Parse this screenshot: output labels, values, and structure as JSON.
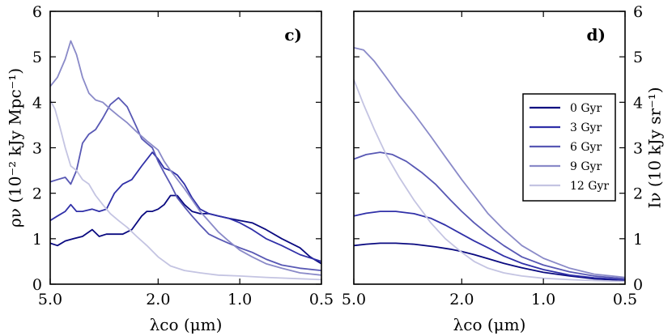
{
  "chart_data": [
    {
      "type": "line",
      "panel_label": "c)",
      "xlabel": "λco (μm)",
      "ylabel": "ρν (10⁻² kJy Mpc⁻¹)",
      "x_scale": "log-reversed",
      "xlim": [
        5.0,
        0.5
      ],
      "ylim": [
        0,
        6
      ],
      "xticks": [
        5.0,
        2.0,
        1.0,
        0.5
      ],
      "xtick_labels": [
        "5.0",
        "2.0",
        "1.0",
        "0.5"
      ],
      "yticks": [
        0,
        1,
        2,
        3,
        4,
        5,
        6
      ],
      "ytick_labels": [
        "0",
        "1",
        "2",
        "3",
        "4",
        "5",
        "6"
      ],
      "series": [
        {
          "name": "0 Gyr",
          "color": "#0a0a80",
          "x": [
            5.0,
            4.7,
            4.4,
            4.1,
            3.8,
            3.5,
            3.3,
            3.1,
            2.9,
            2.7,
            2.5,
            2.3,
            2.2,
            2.1,
            2.0,
            1.9,
            1.8,
            1.7,
            1.6,
            1.5,
            1.4,
            1.3,
            1.2,
            1.1,
            1.0,
            0.9,
            0.8,
            0.7,
            0.6,
            0.55,
            0.5
          ],
          "y": [
            0.9,
            0.85,
            0.95,
            1.0,
            1.05,
            1.2,
            1.05,
            1.1,
            1.1,
            1.1,
            1.2,
            1.5,
            1.6,
            1.6,
            1.65,
            1.75,
            1.95,
            1.95,
            1.75,
            1.6,
            1.55,
            1.55,
            1.5,
            1.45,
            1.4,
            1.35,
            1.2,
            1.0,
            0.8,
            0.6,
            0.45
          ]
        },
        {
          "name": "3 Gyr",
          "color": "#3030a8",
          "x": [
            5.0,
            4.7,
            4.4,
            4.2,
            4.0,
            3.8,
            3.5,
            3.3,
            3.1,
            2.9,
            2.7,
            2.5,
            2.3,
            2.1,
            2.0,
            1.9,
            1.8,
            1.7,
            1.6,
            1.5,
            1.4,
            1.3,
            1.2,
            1.1,
            1.0,
            0.9,
            0.8,
            0.7,
            0.6,
            0.5
          ],
          "y": [
            1.4,
            1.5,
            1.6,
            1.75,
            1.6,
            1.6,
            1.65,
            1.6,
            1.65,
            2.0,
            2.2,
            2.3,
            2.6,
            2.9,
            2.75,
            2.55,
            2.5,
            2.4,
            2.2,
            1.9,
            1.65,
            1.55,
            1.5,
            1.45,
            1.35,
            1.2,
            1.0,
            0.85,
            0.65,
            0.5
          ]
        },
        {
          "name": "6 Gyr",
          "color": "#5858b4",
          "x": [
            5.0,
            4.7,
            4.4,
            4.2,
            4.0,
            3.8,
            3.6,
            3.4,
            3.2,
            3.0,
            2.8,
            2.6,
            2.4,
            2.3,
            2.2,
            2.1,
            2.0,
            1.9,
            1.8,
            1.7,
            1.6,
            1.5,
            1.4,
            1.3,
            1.2,
            1.1,
            1.0,
            0.9,
            0.8,
            0.7,
            0.6,
            0.5
          ],
          "y": [
            2.25,
            2.3,
            2.35,
            2.2,
            2.5,
            3.1,
            3.3,
            3.4,
            3.65,
            3.95,
            4.1,
            3.9,
            3.45,
            3.2,
            3.1,
            3.0,
            2.7,
            2.45,
            2.2,
            1.9,
            1.7,
            1.5,
            1.3,
            1.1,
            1.0,
            0.9,
            0.8,
            0.7,
            0.55,
            0.42,
            0.35,
            0.3
          ]
        },
        {
          "name": "9 Gyr",
          "color": "#8a8ac8",
          "x": [
            5.0,
            4.7,
            4.4,
            4.2,
            4.0,
            3.8,
            3.6,
            3.4,
            3.2,
            3.0,
            2.8,
            2.6,
            2.4,
            2.2,
            2.0,
            1.9,
            1.8,
            1.6,
            1.4,
            1.2,
            1.1,
            1.0,
            0.9,
            0.8,
            0.7,
            0.6,
            0.5
          ],
          "y": [
            4.35,
            4.55,
            4.95,
            5.35,
            5.05,
            4.55,
            4.2,
            4.05,
            4.0,
            3.85,
            3.7,
            3.55,
            3.35,
            3.15,
            2.95,
            2.7,
            2.5,
            2.1,
            1.6,
            1.15,
            0.95,
            0.75,
            0.6,
            0.45,
            0.35,
            0.25,
            0.2
          ]
        },
        {
          "name": "12 Gyr",
          "color": "#c4c4e2",
          "x": [
            5.0,
            4.8,
            4.6,
            4.4,
            4.2,
            4.0,
            3.8,
            3.6,
            3.4,
            3.2,
            3.0,
            2.8,
            2.6,
            2.4,
            2.2,
            2.0,
            1.8,
            1.6,
            1.4,
            1.2,
            1.0,
            0.8,
            0.6,
            0.5
          ],
          "y": [
            4.05,
            3.85,
            3.45,
            3.0,
            2.6,
            2.5,
            2.3,
            2.2,
            1.95,
            1.75,
            1.55,
            1.4,
            1.25,
            1.05,
            0.85,
            0.6,
            0.4,
            0.3,
            0.25,
            0.2,
            0.18,
            0.15,
            0.12,
            0.1
          ]
        }
      ]
    },
    {
      "type": "line",
      "panel_label": "d)",
      "xlabel": "λco (μm)",
      "ylabel": "Iν (10 kJy sr⁻¹)",
      "x_scale": "log-reversed",
      "xlim": [
        5.0,
        0.5
      ],
      "ylim": [
        0,
        6
      ],
      "xticks": [
        5.0,
        2.0,
        1.0,
        0.5
      ],
      "xtick_labels": [
        "5.0",
        "2.0",
        "1.0",
        "0.5"
      ],
      "yticks": [
        0,
        1,
        2,
        3,
        4,
        5,
        6
      ],
      "ytick_labels": [
        "0",
        "1",
        "2",
        "3",
        "4",
        "5",
        "6"
      ],
      "legend_position": "center-right",
      "series": [
        {
          "name": "0 Gyr",
          "color": "#0a0a80",
          "x": [
            5.0,
            4.5,
            4.0,
            3.5,
            3.0,
            2.5,
            2.2,
            2.0,
            1.8,
            1.6,
            1.4,
            1.2,
            1.0,
            0.8,
            0.65,
            0.5
          ],
          "y": [
            0.85,
            0.88,
            0.9,
            0.9,
            0.88,
            0.82,
            0.77,
            0.72,
            0.65,
            0.56,
            0.46,
            0.36,
            0.26,
            0.18,
            0.12,
            0.08
          ]
        },
        {
          "name": "3 Gyr",
          "color": "#3030a8",
          "x": [
            5.0,
            4.5,
            4.0,
            3.5,
            3.0,
            2.6,
            2.3,
            2.0,
            1.8,
            1.6,
            1.4,
            1.2,
            1.0,
            0.8,
            0.65,
            0.5
          ],
          "y": [
            1.5,
            1.56,
            1.6,
            1.6,
            1.55,
            1.45,
            1.3,
            1.1,
            0.95,
            0.8,
            0.62,
            0.46,
            0.32,
            0.2,
            0.14,
            0.1
          ]
        },
        {
          "name": "6 Gyr",
          "color": "#5858b4",
          "x": [
            5.0,
            4.5,
            4.0,
            3.6,
            3.2,
            2.8,
            2.5,
            2.2,
            2.0,
            1.8,
            1.6,
            1.4,
            1.2,
            1.0,
            0.8,
            0.65,
            0.5
          ],
          "y": [
            2.75,
            2.85,
            2.9,
            2.85,
            2.7,
            2.45,
            2.2,
            1.85,
            1.6,
            1.35,
            1.1,
            0.85,
            0.6,
            0.42,
            0.27,
            0.18,
            0.12
          ]
        },
        {
          "name": "9 Gyr",
          "color": "#8a8ac8",
          "x": [
            5.0,
            4.6,
            4.2,
            3.8,
            3.4,
            3.0,
            2.6,
            2.3,
            2.0,
            1.8,
            1.6,
            1.4,
            1.2,
            1.0,
            0.8,
            0.65,
            0.5
          ],
          "y": [
            5.2,
            5.15,
            4.9,
            4.55,
            4.15,
            3.75,
            3.25,
            2.8,
            2.3,
            1.95,
            1.55,
            1.2,
            0.85,
            0.57,
            0.35,
            0.22,
            0.15
          ]
        },
        {
          "name": "12 Gyr",
          "color": "#c4c4e2",
          "x": [
            5.0,
            4.6,
            4.2,
            3.8,
            3.4,
            3.0,
            2.6,
            2.3,
            2.0,
            1.8,
            1.6,
            1.4,
            1.2,
            1.0,
            0.8,
            0.65,
            0.5
          ],
          "y": [
            4.5,
            3.95,
            3.4,
            2.85,
            2.35,
            1.85,
            1.35,
            1.0,
            0.7,
            0.5,
            0.35,
            0.25,
            0.18,
            0.13,
            0.1,
            0.08,
            0.06
          ]
        }
      ]
    }
  ]
}
